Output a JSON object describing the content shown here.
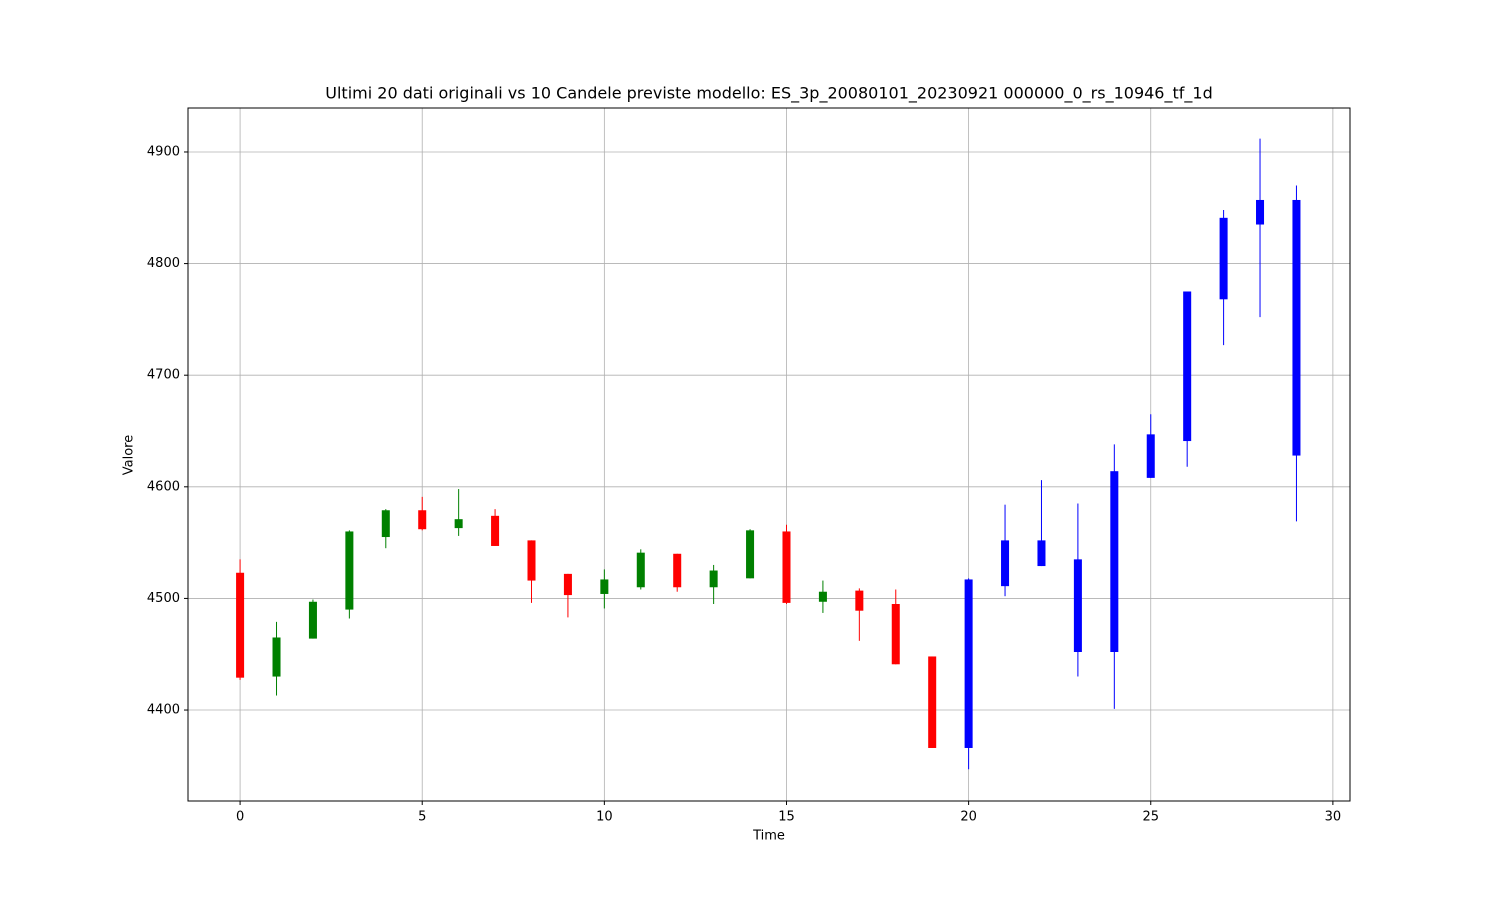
{
  "chart_data": {
    "type": "candlestick",
    "title": "Ultimi 20 dati originali vs 10 Candele previste modello: ES_3p_20080101_20230921 000000_0_rs_10946_tf_1d",
    "xlabel": "Time",
    "ylabel": "Valore",
    "x": [
      0,
      1,
      2,
      3,
      4,
      5,
      6,
      7,
      8,
      9,
      10,
      11,
      12,
      13,
      14,
      15,
      16,
      17,
      18,
      19,
      20,
      21,
      22,
      23,
      24,
      25,
      26,
      27,
      28,
      29
    ],
    "open": [
      4523,
      4430,
      4464,
      4490,
      4555,
      4579,
      4563,
      4574,
      4552,
      4522,
      4504,
      4510,
      4540,
      4510,
      4518,
      4560,
      4497,
      4507,
      4495,
      4448,
      4366,
      4511,
      4552,
      4535,
      4452,
      4608,
      4641,
      4768,
      4835,
      4857
    ],
    "high": [
      4535,
      4479,
      4499,
      4561,
      4580,
      4591,
      4598,
      4580,
      4552,
      4522,
      4526,
      4544,
      4540,
      4530,
      4562,
      4566,
      4516,
      4509,
      4508,
      4448,
      4518,
      4584,
      4606,
      4585,
      4638,
      4665,
      4775,
      4848,
      4912,
      4870
    ],
    "low": [
      4427,
      4413,
      4464,
      4482,
      4545,
      4561,
      4556,
      4547,
      4496,
      4483,
      4491,
      4508,
      4506,
      4495,
      4518,
      4495,
      4487,
      4462,
      4441,
      4366,
      4347,
      4502,
      4529,
      4430,
      4401,
      4608,
      4618,
      4727,
      4752,
      4569
    ],
    "close": [
      4429,
      4465,
      4497,
      4560,
      4579,
      4562,
      4571,
      4547,
      4516,
      4503,
      4517,
      4541,
      4510,
      4525,
      4561,
      4496,
      4506,
      4489,
      4441,
      4366,
      4517,
      4552,
      4529,
      4452,
      4614,
      4647,
      4775,
      4841,
      4857,
      4628
    ],
    "colors": [
      "red",
      "green",
      "green",
      "green",
      "green",
      "red",
      "green",
      "red",
      "red",
      "red",
      "green",
      "green",
      "red",
      "green",
      "green",
      "red",
      "green",
      "red",
      "red",
      "red",
      "blue",
      "blue",
      "blue",
      "blue",
      "blue",
      "blue",
      "blue",
      "blue",
      "blue",
      "blue"
    ],
    "xlim": [
      -1.43,
      30.47
    ],
    "ylim": [
      4318.5,
      4939.4
    ],
    "xticks": [
      0,
      5,
      10,
      15,
      20,
      25,
      30
    ],
    "yticks": [
      4400,
      4500,
      4600,
      4700,
      4800,
      4900
    ],
    "grid": true
  }
}
